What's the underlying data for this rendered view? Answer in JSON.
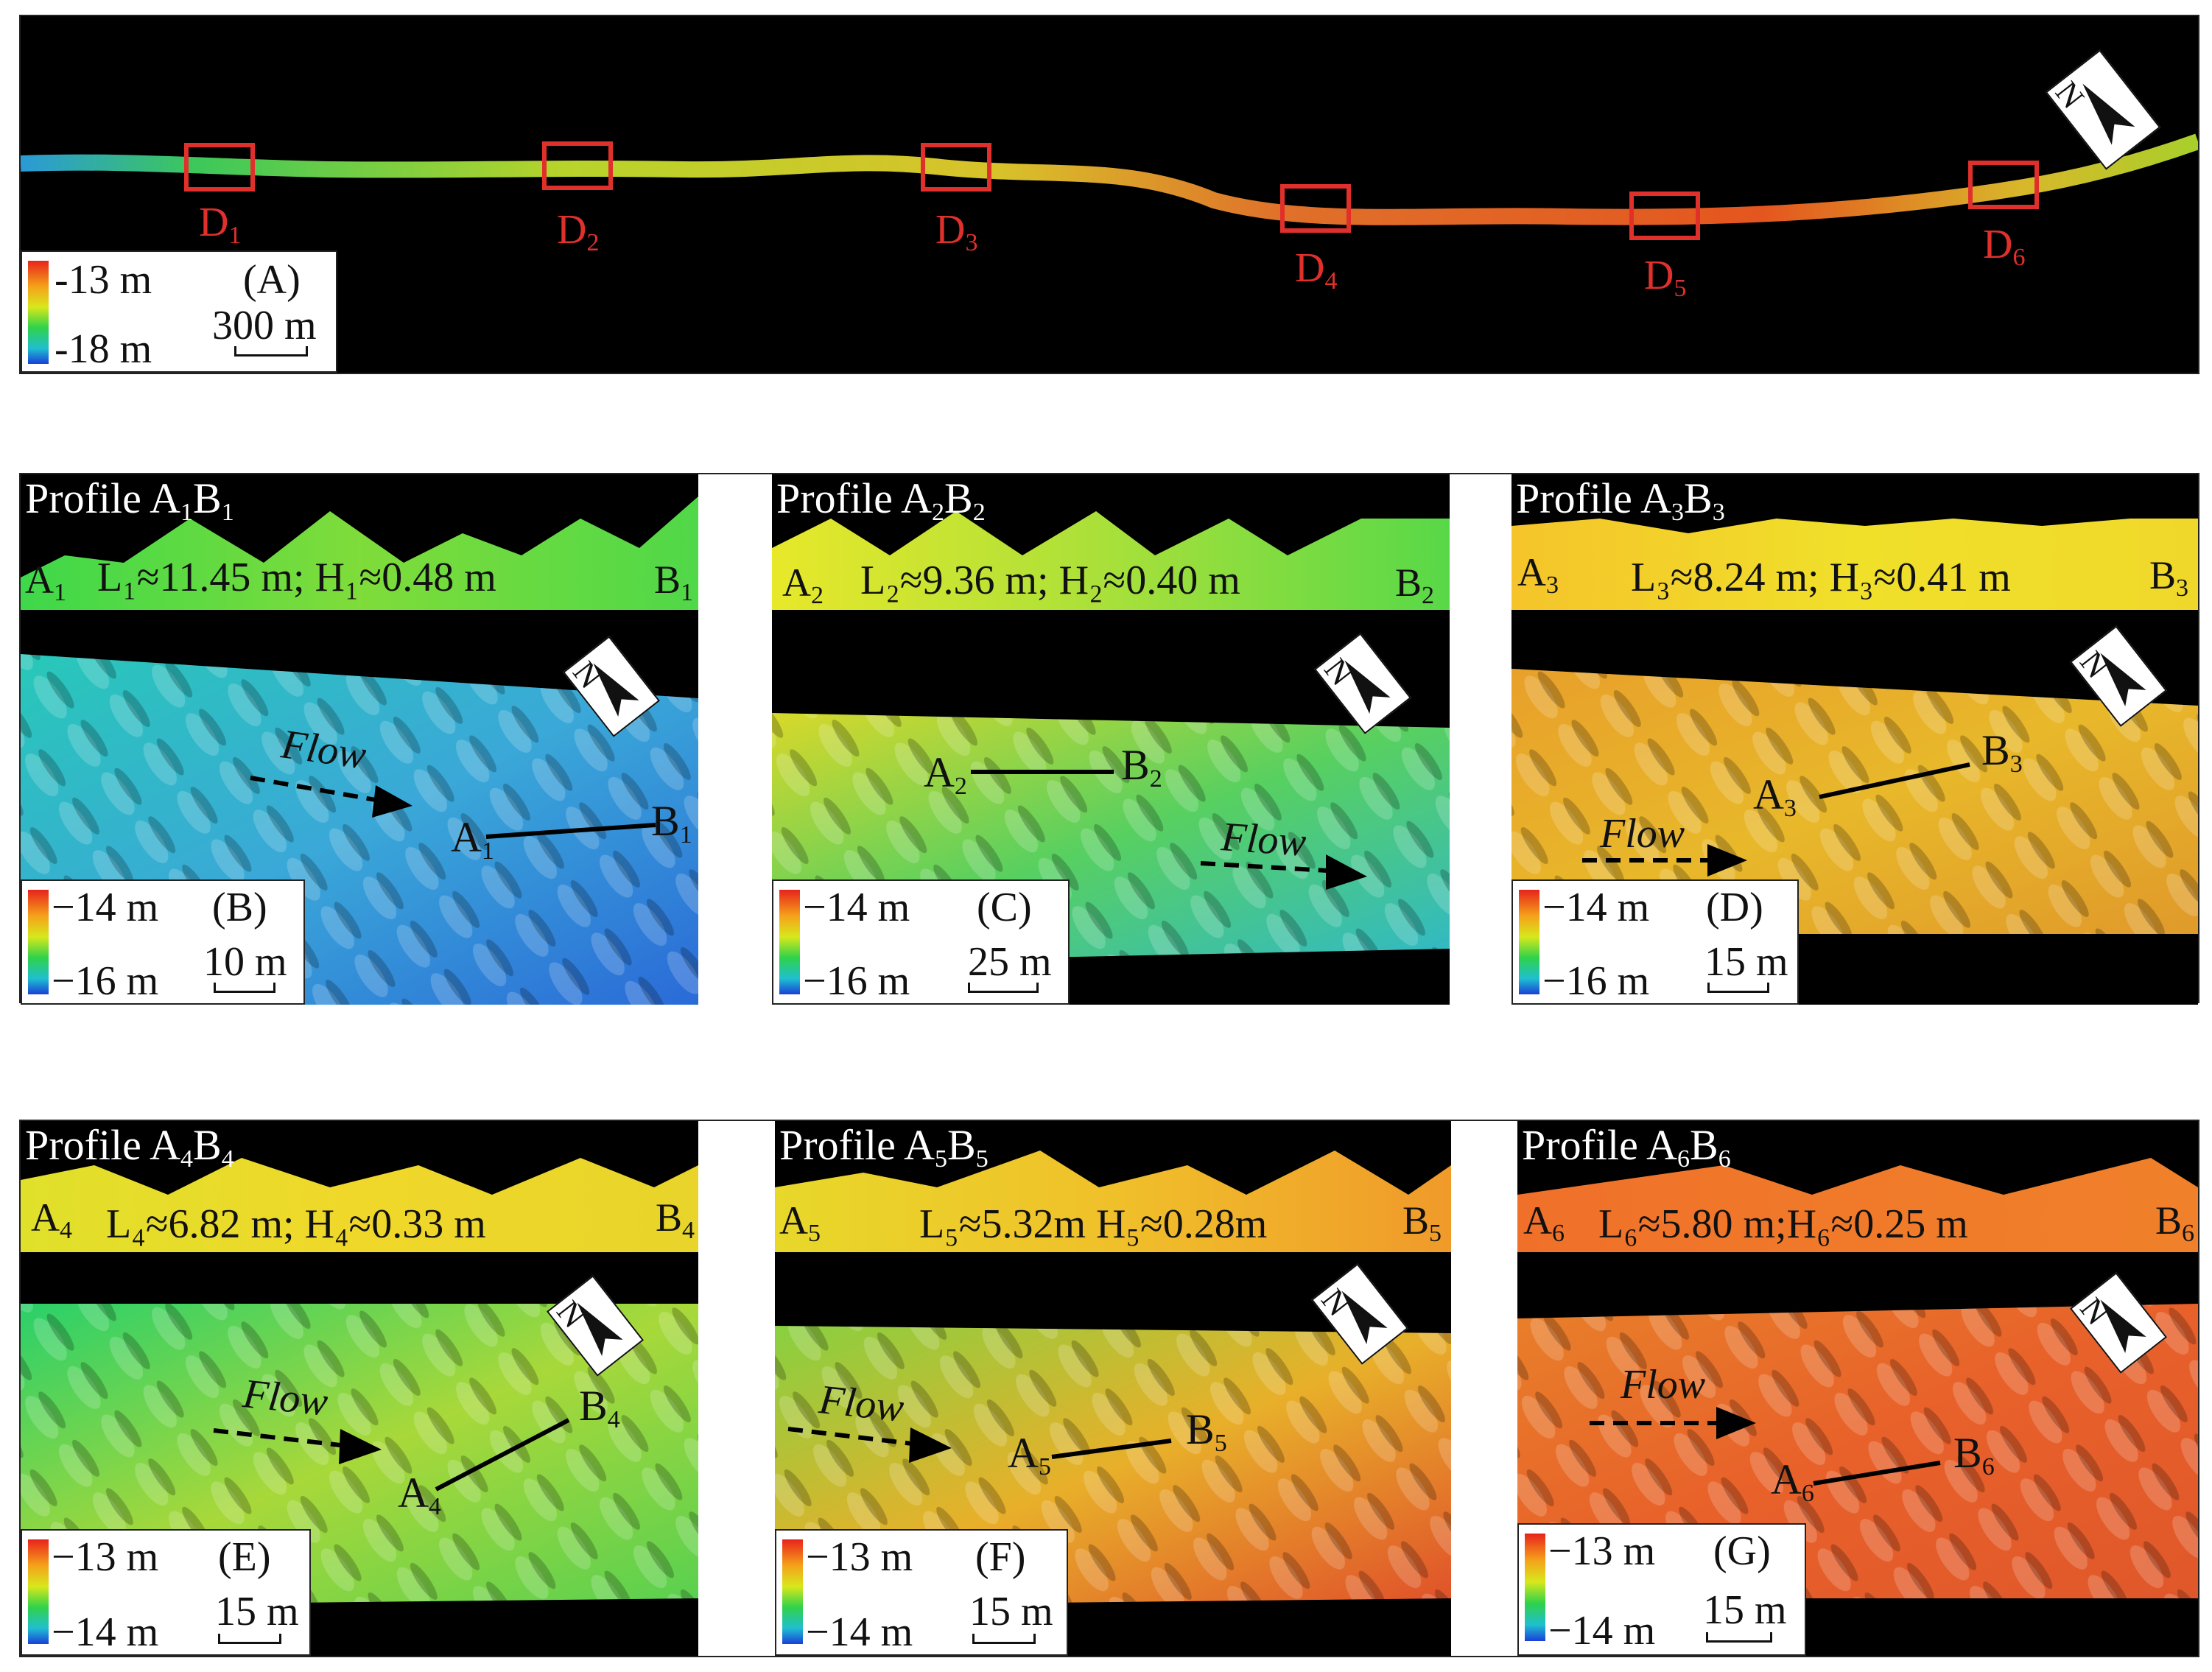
{
  "overview": {
    "label": "(A)",
    "legend_top": "-13 m",
    "legend_bottom": "-18 m",
    "scale": "300 m",
    "boxes": [
      {
        "label": "D",
        "sub": "1"
      },
      {
        "label": "D",
        "sub": "2"
      },
      {
        "label": "D",
        "sub": "3"
      },
      {
        "label": "D",
        "sub": "4"
      },
      {
        "label": "D",
        "sub": "5"
      },
      {
        "label": "D",
        "sub": "6"
      }
    ]
  },
  "panels": [
    {
      "label": "(B)",
      "profile_title": "Profile A",
      "p_sub1": "1",
      "p_mid": "B",
      "p_sub2": "1",
      "stats": "L₁≈11.45 m; H₁≈0.48 m",
      "a": "A",
      "b": "B",
      "sub": "1",
      "legend_top": "14 m",
      "legend_bottom": "16 m",
      "scale": "10 m",
      "flow": "Flow"
    },
    {
      "label": "(C)",
      "profile_title": "Profile A",
      "p_sub1": "2",
      "p_mid": "B",
      "p_sub2": "2",
      "stats": "L₂≈9.36 m; H₂≈0.40 m",
      "a": "A",
      "b": "B",
      "sub": "2",
      "legend_top": "14 m",
      "legend_bottom": "16 m",
      "scale": "25 m",
      "flow": "Flow"
    },
    {
      "label": "(D)",
      "profile_title": "Profile A",
      "p_sub1": "3",
      "p_mid": "B",
      "p_sub2": "3",
      "stats": "L₃≈8.24 m; H₃≈0.41 m",
      "a": "A",
      "b": "B",
      "sub": "3",
      "legend_top": "14 m",
      "legend_bottom": "16 m",
      "scale": "15 m",
      "flow": "Flow"
    },
    {
      "label": "(E)",
      "profile_title": "Profile A",
      "p_sub1": "4",
      "p_mid": "B",
      "p_sub2": "4",
      "stats": "L₄≈6.82 m; H₄≈0.33 m",
      "a": "A",
      "b": "B",
      "sub": "4",
      "legend_top": "13 m",
      "legend_bottom": "14 m",
      "scale": "15 m",
      "flow": "Flow"
    },
    {
      "label": "(F)",
      "profile_title": "Profile A",
      "p_sub1": "5",
      "p_mid": "B",
      "p_sub2": "5",
      "stats": "L₅≈5.32m H₅≈0.28m",
      "a": "A",
      "b": "B",
      "sub": "5",
      "legend_top": "13 m",
      "legend_bottom": "14 m",
      "scale": "15 m",
      "flow": "Flow"
    },
    {
      "label": "(G)",
      "profile_title": "Profile A",
      "p_sub1": "6",
      "p_mid": "B",
      "p_sub2": "6",
      "stats": "L₆≈5.80 m;H₆≈0.25 m",
      "a": "A",
      "b": "B",
      "sub": "6",
      "legend_top": "13 m",
      "legend_bottom": "14 m",
      "scale": "15 m",
      "flow": "Flow"
    }
  ],
  "north_label": "N",
  "colors": {
    "box_red": "#e0302c",
    "colormap_high": "#e8321c",
    "colormap_low": "#1a3fd8"
  }
}
